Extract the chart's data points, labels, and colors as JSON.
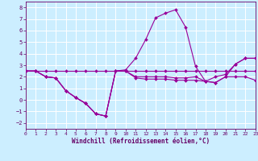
{
  "bg_color": "#cceeff",
  "grid_color": "#ffffff",
  "line_color": "#990099",
  "marker_color": "#990099",
  "xlabel": "Windchill (Refroidissement éolien,°C)",
  "xlim": [
    0,
    23
  ],
  "ylim": [
    -2.5,
    8.5
  ],
  "yticks": [
    -2,
    -1,
    0,
    1,
    2,
    3,
    4,
    5,
    6,
    7,
    8
  ],
  "xticks": [
    0,
    1,
    2,
    3,
    4,
    5,
    6,
    7,
    8,
    9,
    10,
    11,
    12,
    13,
    14,
    15,
    16,
    17,
    18,
    19,
    20,
    21,
    22,
    23
  ],
  "curve1_x": [
    0,
    1,
    2,
    3,
    4,
    5,
    6,
    7,
    8,
    9,
    10,
    11,
    12,
    13,
    14,
    15,
    16,
    17,
    18,
    19,
    20,
    21,
    22,
    23
  ],
  "curve1_y": [
    2.5,
    2.5,
    2.5,
    2.5,
    2.5,
    2.5,
    2.5,
    2.5,
    2.5,
    2.5,
    2.5,
    2.5,
    2.5,
    2.5,
    2.5,
    2.5,
    2.5,
    2.5,
    2.5,
    2.5,
    2.5,
    2.5,
    2.5,
    2.5
  ],
  "curve2_x": [
    0,
    1,
    2,
    3,
    4,
    5,
    6,
    7,
    8,
    9,
    10,
    11,
    12,
    13,
    14,
    15,
    16,
    17,
    18,
    19,
    20,
    21,
    22,
    23
  ],
  "curve2_y": [
    2.5,
    2.5,
    2.0,
    1.9,
    0.8,
    0.2,
    -0.3,
    -1.2,
    -1.4,
    2.5,
    2.5,
    1.9,
    1.8,
    1.8,
    1.8,
    1.7,
    1.7,
    1.7,
    1.6,
    1.5,
    2.0,
    2.0,
    2.0,
    1.7
  ],
  "curve3_x": [
    0,
    1,
    2,
    3,
    4,
    5,
    6,
    7,
    8,
    9,
    10,
    11,
    12,
    13,
    14,
    15,
    16,
    17,
    18,
    19,
    20,
    21,
    22,
    23
  ],
  "curve3_y": [
    2.5,
    2.5,
    2.0,
    1.9,
    0.8,
    0.2,
    -0.3,
    -1.2,
    -1.4,
    2.5,
    2.6,
    3.6,
    5.2,
    7.1,
    7.5,
    7.8,
    6.3,
    2.9,
    1.6,
    2.0,
    2.2,
    3.1,
    3.6,
    3.6
  ],
  "curve4_x": [
    0,
    1,
    2,
    3,
    4,
    5,
    6,
    7,
    8,
    9,
    10,
    11,
    12,
    13,
    14,
    15,
    16,
    17,
    18,
    19,
    20,
    21,
    22,
    23
  ],
  "curve4_y": [
    2.5,
    2.5,
    2.0,
    1.9,
    0.8,
    0.2,
    -0.3,
    -1.2,
    -1.4,
    2.5,
    2.5,
    2.0,
    2.0,
    2.0,
    2.0,
    1.9,
    1.9,
    2.0,
    1.6,
    1.5,
    2.0,
    3.1,
    3.6,
    3.6
  ]
}
